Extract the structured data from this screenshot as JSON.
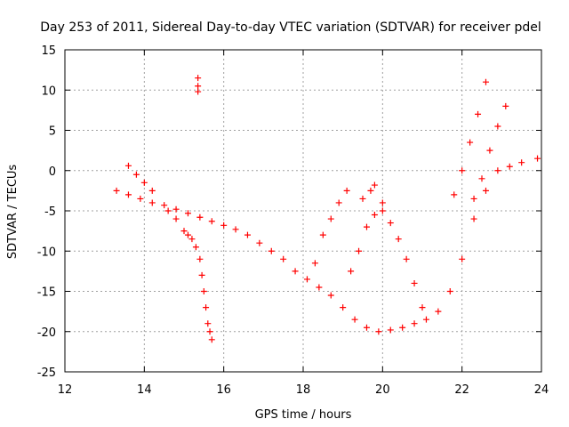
{
  "chart_data": {
    "type": "scatter",
    "title": "Day 253 of 2011, Sidereal Day-to-day VTEC variation (SDTVAR) for receiver pdel",
    "xlabel": "GPS time / hours",
    "ylabel": "SDTVAR / TECUs",
    "xlim": [
      12,
      24
    ],
    "ylim": [
      -25,
      15
    ],
    "x_ticks": [
      12,
      14,
      16,
      18,
      20,
      22,
      24
    ],
    "y_ticks": [
      -25,
      -20,
      -15,
      -10,
      -5,
      0,
      5,
      10,
      15
    ],
    "x_tick_labels": [
      "12",
      "14",
      "16",
      "18",
      "20",
      "22",
      "24"
    ],
    "y_tick_labels": [
      "-25",
      "-20",
      "-15",
      "-10",
      "-5",
      "0",
      "5",
      "10",
      "15"
    ],
    "grid": true,
    "marker": "+",
    "color": "#ff0000",
    "series": [
      {
        "x": [
          13.3,
          13.6,
          13.9,
          14.2,
          14.5,
          14.8,
          15.1,
          15.4,
          15.7,
          16.0,
          16.3,
          16.6,
          16.9,
          17.2,
          17.5,
          17.8,
          18.1,
          18.4,
          18.7,
          19.0,
          19.3,
          19.6,
          19.9,
          20.2,
          20.5,
          20.8,
          21.1,
          21.4,
          21.7,
          22.0,
          22.3,
          22.6,
          22.9,
          23.2,
          23.5,
          23.9
        ],
        "y": [
          -2.5,
          -3.0,
          -3.5,
          -4.0,
          -4.3,
          -4.8,
          -5.3,
          -5.8,
          -6.3,
          -6.8,
          -7.3,
          -8.0,
          -9.0,
          -10.0,
          -11.0,
          -12.5,
          -13.5,
          -14.5,
          -15.5,
          -17.0,
          -18.5,
          -19.5,
          -20.0,
          -19.8,
          -19.5,
          -19.0,
          -18.5,
          -17.5,
          -15.0,
          -11.0,
          -6.0,
          -2.5,
          0.0,
          0.5,
          1.0,
          1.5
        ]
      },
      {
        "x": [
          14.6,
          14.8,
          15.0,
          15.1,
          15.2,
          15.3,
          15.4,
          15.45,
          15.5,
          15.55,
          15.6,
          15.65,
          15.7
        ],
        "y": [
          -5.0,
          -6.0,
          -7.5,
          -8.0,
          -8.5,
          -9.5,
          -11.0,
          -13.0,
          -15.0,
          -17.0,
          -19.0,
          -20.0,
          -21.0
        ]
      },
      {
        "x": [
          15.35,
          15.35,
          15.35
        ],
        "y": [
          11.5,
          10.5,
          9.8
        ]
      },
      {
        "x": [
          13.6,
          13.8,
          14.0,
          14.2
        ],
        "y": [
          0.6,
          -0.5,
          -1.5,
          -2.5
        ]
      },
      {
        "x": [
          18.3,
          18.5,
          18.7,
          18.9,
          19.1
        ],
        "y": [
          -11.5,
          -8.0,
          -6.0,
          -4.0,
          -2.5
        ]
      },
      {
        "x": [
          19.2,
          19.4,
          19.6,
          19.8,
          20.0
        ],
        "y": [
          -12.5,
          -10.0,
          -7.0,
          -5.5,
          -4.0
        ]
      },
      {
        "x": [
          19.5,
          19.7,
          19.8
        ],
        "y": [
          -3.5,
          -2.5,
          -1.8
        ]
      },
      {
        "x": [
          20.0,
          20.2,
          20.4,
          20.6,
          20.8,
          21.0
        ],
        "y": [
          -5.0,
          -6.5,
          -8.5,
          -11.0,
          -14.0,
          -17.0
        ]
      },
      {
        "x": [
          21.8,
          22.0,
          22.2,
          22.4,
          22.6
        ],
        "y": [
          -3.0,
          0.0,
          3.5,
          7.0,
          11.0
        ]
      },
      {
        "x": [
          22.3,
          22.5,
          22.7,
          22.9,
          23.1
        ],
        "y": [
          -3.5,
          -1.0,
          2.5,
          5.5,
          8.0
        ]
      }
    ]
  }
}
